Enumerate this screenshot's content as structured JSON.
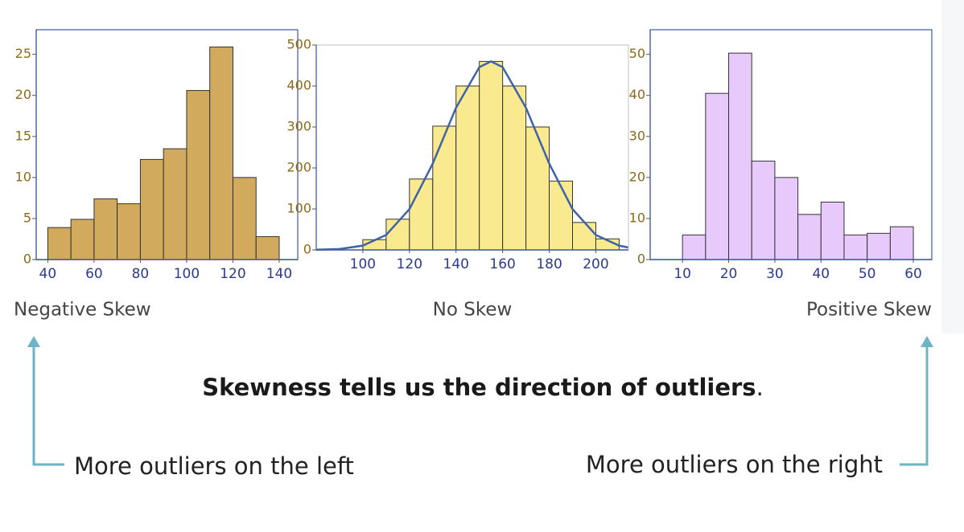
{
  "chart_data": [
    {
      "type": "histogram",
      "caption": "Negative Skew",
      "color": "#d2aa5e",
      "frame_color": "#3d5a99",
      "bins": [
        40,
        50,
        60,
        70,
        80,
        90,
        100,
        110,
        120,
        130,
        140
      ],
      "values": [
        3.9,
        4.9,
        7.4,
        6.8,
        12.2,
        13.5,
        20.6,
        25.9,
        10,
        2.8
      ],
      "xlim": [
        35,
        148
      ],
      "xticks": [
        40,
        60,
        80,
        100,
        120,
        140
      ],
      "ylim": [
        0,
        28
      ],
      "yticks": [
        0,
        5,
        10,
        15,
        20,
        25
      ]
    },
    {
      "type": "histogram",
      "caption": "No Skew",
      "color": "#f9e98f",
      "frame_color": "#cccccc",
      "bins": [
        100,
        110,
        120,
        130,
        140,
        150,
        160,
        170,
        180,
        190,
        200,
        210
      ],
      "values": [
        25,
        75,
        173,
        302,
        400,
        460,
        400,
        300,
        168,
        67,
        27
      ],
      "curve": {
        "color": "#3f63a6",
        "x": [
          80,
          90,
          100,
          110,
          120,
          130,
          140,
          150,
          155,
          160,
          170,
          180,
          190,
          200,
          210,
          214
        ],
        "values": [
          0.4,
          2.3,
          10.5,
          36.6,
          99.5,
          210.6,
          347,
          446,
          460,
          446,
          347,
          210.6,
          99.5,
          36.6,
          10.5,
          5.9
        ]
      },
      "xlim": [
        80,
        214
      ],
      "xticks": [
        100,
        120,
        140,
        160,
        180,
        200
      ],
      "ylim": [
        0,
        500
      ],
      "yticks": [
        0,
        100,
        200,
        300,
        400,
        500
      ]
    },
    {
      "type": "histogram",
      "caption": "Positive Skew",
      "color": "#e8c9fb",
      "frame_color": "#3d5a99",
      "bins": [
        10,
        15,
        20,
        25,
        30,
        35,
        40,
        45,
        50,
        55,
        60
      ],
      "values": [
        6,
        40.5,
        50.3,
        24,
        20,
        11,
        14,
        6,
        6.4,
        8
      ],
      "xlim": [
        3,
        64
      ],
      "xticks": [
        10,
        20,
        30,
        40,
        50,
        60
      ],
      "ylim": [
        0,
        56
      ],
      "yticks": [
        0,
        10,
        20,
        30,
        40,
        50
      ]
    }
  ],
  "headline": [
    "Skewness tells us the direction of outliers",
    "."
  ],
  "notes": [
    "More outliers on the left",
    "More outliers on the right"
  ]
}
